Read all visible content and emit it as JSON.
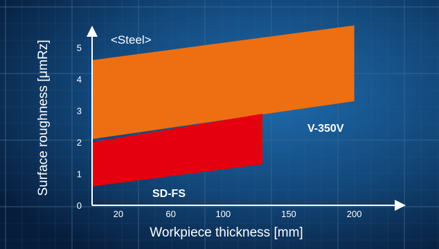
{
  "chart_data": {
    "type": "area",
    "title": "",
    "annotation": "<Steel>",
    "xlabel": "Workpiece thickness [mm]",
    "ylabel": "Surface roughness [μmRz]",
    "x_ticks": [
      {
        "value": 20,
        "label": "20"
      },
      {
        "value": 60,
        "label": "60"
      },
      {
        "value": 100,
        "label": "100"
      },
      {
        "value": 150,
        "label": "150"
      },
      {
        "value": 200,
        "label": "200"
      }
    ],
    "y_ticks": [
      {
        "value": 0,
        "label": "0"
      },
      {
        "value": 1,
        "label": "1"
      },
      {
        "value": 2,
        "label": "2"
      },
      {
        "value": 3,
        "label": "3"
      },
      {
        "value": 4,
        "label": "4"
      },
      {
        "value": 5,
        "label": "5"
      }
    ],
    "series": [
      {
        "name": "V-350V",
        "color": "#ee6f12",
        "x_range": [
          0,
          200
        ],
        "upper": [
          [
            0,
            4.6
          ],
          [
            200,
            5.7
          ]
        ],
        "lower": [
          [
            0,
            2.1
          ],
          [
            200,
            3.3
          ]
        ]
      },
      {
        "name": "SD-FS",
        "color": "#e5000f",
        "x_range": [
          0,
          130
        ],
        "upper": [
          [
            0,
            2.0
          ],
          [
            130,
            2.9
          ]
        ],
        "lower": [
          [
            0,
            0.6
          ],
          [
            130,
            1.3
          ]
        ]
      }
    ],
    "colors": {
      "background": "#0b2a52",
      "grid": "#3a6a95",
      "axis": "#ffffff",
      "text": "#ffffff"
    }
  }
}
